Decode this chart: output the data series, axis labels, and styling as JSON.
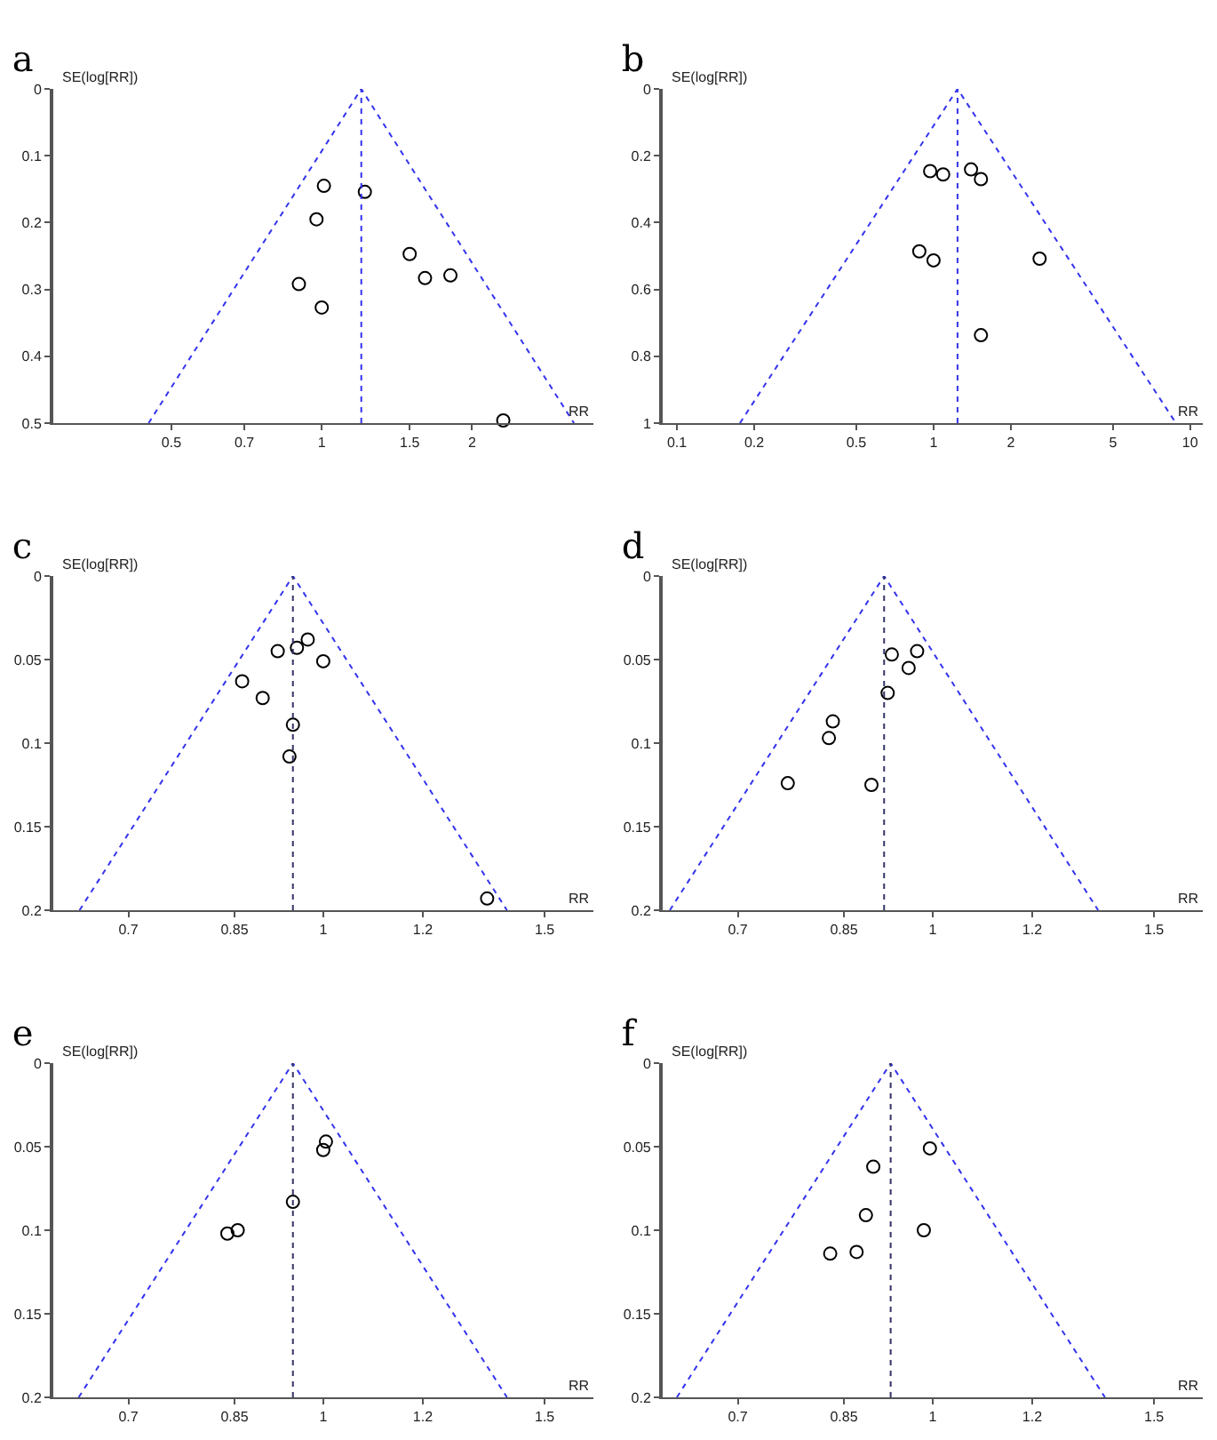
{
  "chart_data": [
    {
      "type": "scatter",
      "title": "a",
      "xlabel": "RR",
      "ylabel": "SE(log[RR])",
      "log": "x",
      "grid": false,
      "xlim": [
        0.29,
        3.5
      ],
      "xticks": [
        0.5,
        0.7,
        1,
        1.5,
        2
      ],
      "ylim": [
        0.5,
        0
      ],
      "yticks": [
        0,
        0.1,
        0.2,
        0.3,
        0.4,
        0.5
      ],
      "series": [
        {
          "type": "scatter",
          "marker": "circle",
          "color": "#000000",
          "x": [
            1.01,
            1.22,
            0.976,
            1.5,
            0.9,
            1.0,
            1.61,
            1.81,
            2.31
          ],
          "values": [
            0.145,
            0.154,
            0.195,
            0.247,
            0.292,
            0.327,
            0.283,
            0.279,
            0.496
          ]
        },
        {
          "type": "line",
          "marker": "none",
          "line_style": "dotted",
          "color": "#3333ee",
          "x": [
            0.45,
            1.2,
            3.2
          ],
          "values": [
            0.5,
            0,
            0.5
          ]
        }
      ],
      "ref_lines": [
        {
          "axis": "x",
          "value": 1.2,
          "color": "#3333ee",
          "line_style": "dotted"
        }
      ]
    },
    {
      "type": "scatter",
      "title": "b",
      "xlabel": "RR",
      "ylabel": "SE(log[RR])",
      "log": "x",
      "grid": false,
      "xlim": [
        0.088,
        11.2
      ],
      "xticks": [
        0.1,
        0.2,
        0.5,
        1,
        2,
        5,
        10
      ],
      "ylim": [
        1,
        0
      ],
      "yticks": [
        0,
        0.2,
        0.4,
        0.6,
        0.8,
        1
      ],
      "series": [
        {
          "type": "scatter",
          "marker": "circle",
          "color": "#000000",
          "x": [
            0.97,
            1.09,
            1.4,
            1.53,
            0.88,
            1.0,
            2.59,
            1.53
          ],
          "values": [
            0.246,
            0.256,
            0.241,
            0.27,
            0.486,
            0.513,
            0.508,
            0.737
          ]
        },
        {
          "type": "line",
          "marker": "none",
          "line_style": "dotted",
          "color": "#3333ee",
          "x": [
            0.176,
            1.24,
            8.8
          ],
          "values": [
            1,
            0,
            1
          ]
        }
      ],
      "ref_lines": [
        {
          "axis": "x",
          "value": 1.24,
          "color": "#3333ee",
          "line_style": "dotted"
        }
      ]
    },
    {
      "type": "scatter",
      "title": "c",
      "xlabel": "RR",
      "ylabel": "SE(log[RR])",
      "log": "x",
      "grid": false,
      "xlim": [
        0.61,
        1.64
      ],
      "xticks": [
        0.7,
        0.85,
        1,
        1.2,
        1.5
      ],
      "ylim": [
        0.2,
        0
      ],
      "yticks": [
        0,
        0.05,
        0.1,
        0.15,
        0.2
      ],
      "series": [
        {
          "type": "scatter",
          "marker": "circle",
          "color": "#000000",
          "x": [
            0.92,
            0.953,
            0.972,
            1.0,
            0.862,
            0.895,
            0.946,
            0.94,
            1.35
          ],
          "values": [
            0.045,
            0.043,
            0.038,
            0.051,
            0.063,
            0.073,
            0.089,
            0.108,
            0.193
          ]
        },
        {
          "type": "line",
          "marker": "none",
          "line_style": "dotted",
          "color": "#3333ee",
          "x": [
            0.64,
            0.946,
            1.4
          ],
          "values": [
            0.2,
            0,
            0.2
          ]
        }
      ],
      "ref_lines": [
        {
          "axis": "x",
          "value": 0.946,
          "color": "#333366",
          "line_style": "dotted"
        }
      ]
    },
    {
      "type": "scatter",
      "title": "d",
      "xlabel": "RR",
      "ylabel": "SE(log[RR])",
      "log": "x",
      "grid": false,
      "xlim": [
        0.61,
        1.64
      ],
      "xticks": [
        0.7,
        0.85,
        1,
        1.2,
        1.5
      ],
      "ylim": [
        0.2,
        0
      ],
      "yticks": [
        0,
        0.05,
        0.1,
        0.15,
        0.2
      ],
      "series": [
        {
          "type": "scatter",
          "marker": "circle",
          "color": "#000000",
          "x": [
            0.928,
            0.972,
            0.957,
            0.921,
            0.833,
            0.827,
            0.767,
            0.894
          ],
          "values": [
            0.047,
            0.045,
            0.055,
            0.07,
            0.087,
            0.097,
            0.124,
            0.125
          ]
        },
        {
          "type": "line",
          "marker": "none",
          "line_style": "dotted",
          "color": "#3333ee",
          "x": [
            0.618,
            0.915,
            1.354
          ],
          "values": [
            0.2,
            0,
            0.2
          ]
        }
      ],
      "ref_lines": [
        {
          "axis": "x",
          "value": 0.915,
          "color": "#333366",
          "line_style": "dotted"
        }
      ]
    },
    {
      "type": "scatter",
      "title": "e",
      "xlabel": "RR",
      "ylabel": "SE(log[RR])",
      "log": "x",
      "grid": false,
      "xlim": [
        0.61,
        1.64
      ],
      "xticks": [
        0.7,
        0.85,
        1,
        1.2,
        1.5
      ],
      "ylim": [
        0.2,
        0
      ],
      "yticks": [
        0,
        0.05,
        0.1,
        0.15,
        0.2
      ],
      "series": [
        {
          "type": "scatter",
          "marker": "circle",
          "color": "#000000",
          "x": [
            1.005,
            1.0,
            0.946,
            0.839,
            0.855
          ],
          "values": [
            0.047,
            0.052,
            0.083,
            0.102,
            0.1
          ]
        },
        {
          "type": "line",
          "marker": "none",
          "line_style": "dotted",
          "color": "#3333ee",
          "x": [
            0.639,
            0.946,
            1.4
          ],
          "values": [
            0.2,
            0,
            0.2
          ]
        }
      ],
      "ref_lines": [
        {
          "axis": "x",
          "value": 0.946,
          "color": "#333366",
          "line_style": "dotted"
        }
      ]
    },
    {
      "type": "scatter",
      "title": "f",
      "xlabel": "RR",
      "ylabel": "SE(log[RR])",
      "log": "x",
      "grid": false,
      "xlim": [
        0.61,
        1.64
      ],
      "xticks": [
        0.7,
        0.85,
        1,
        1.2,
        1.5
      ],
      "ylim": [
        0.2,
        0
      ],
      "yticks": [
        0,
        0.05,
        0.1,
        0.15,
        0.2
      ],
      "series": [
        {
          "type": "scatter",
          "marker": "circle",
          "color": "#000000",
          "x": [
            0.995,
            0.897,
            0.885,
            0.984,
            0.87,
            0.829
          ],
          "values": [
            0.051,
            0.062,
            0.091,
            0.1,
            0.113,
            0.114
          ]
        },
        {
          "type": "line",
          "marker": "none",
          "line_style": "dotted",
          "color": "#3333ee",
          "x": [
            0.626,
            0.926,
            1.371
          ],
          "values": [
            0.2,
            0,
            0.2
          ]
        }
      ],
      "ref_lines": [
        {
          "axis": "x",
          "value": 0.926,
          "color": "#333366",
          "line_style": "dotted"
        }
      ]
    }
  ]
}
